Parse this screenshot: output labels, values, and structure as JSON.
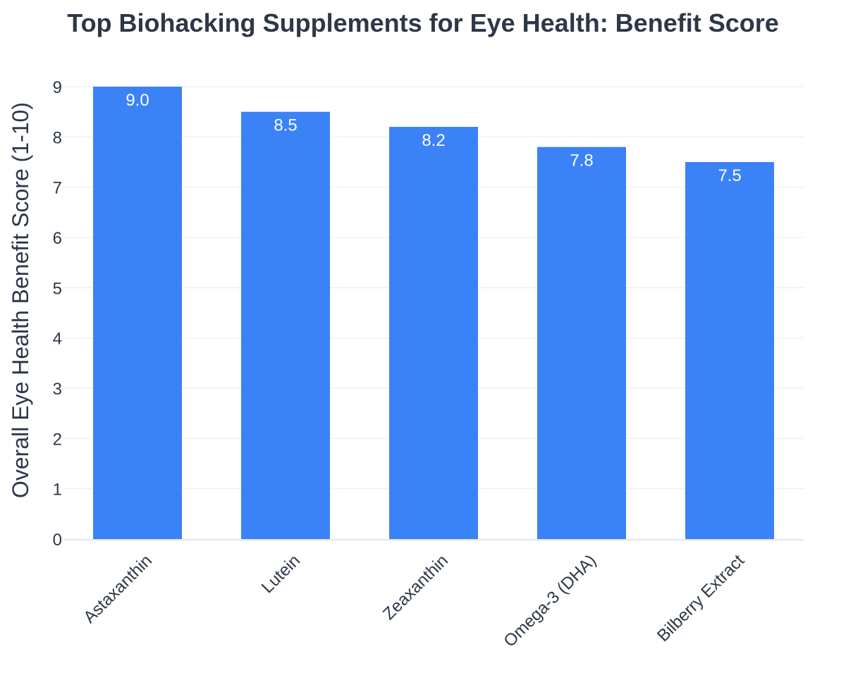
{
  "chart_data": {
    "type": "bar",
    "title": "Top Biohacking Supplements for Eye Health: Benefit Score",
    "xlabel": "",
    "ylabel": "Overall Eye Health Benefit Score (1-10)",
    "categories": [
      "Astaxanthin",
      "Lutein",
      "Zeaxanthin",
      "Omega-3 (DHA)",
      "Bilberry Extract"
    ],
    "values": [
      9.0,
      8.5,
      8.2,
      7.8,
      7.5
    ],
    "value_labels": [
      "9.0",
      "8.5",
      "8.2",
      "7.8",
      "7.5"
    ],
    "ylim": [
      0,
      9
    ],
    "yticks": [
      0,
      1,
      2,
      3,
      4,
      5,
      6,
      7,
      8,
      9
    ],
    "grid": true,
    "legend": "none",
    "colors": {
      "bar": "#3b82f6",
      "grid": "#e6ebf1",
      "baseline": "#dde7f3",
      "text": "#2d3748"
    }
  }
}
